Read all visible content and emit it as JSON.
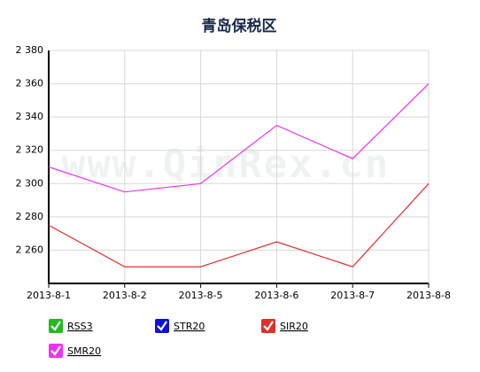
{
  "chart_data": {
    "type": "line",
    "title": "青岛保税区",
    "watermark": "www.QinRex.cn",
    "categories": [
      "2013-8-1",
      "2013-8-2",
      "2013-8-5",
      "2013-8-6",
      "2013-8-7",
      "2013-8-8"
    ],
    "series": [
      {
        "name": "RSS3",
        "color": "#22bb22",
        "values": [
          null,
          null,
          null,
          null,
          null,
          null
        ]
      },
      {
        "name": "STR20",
        "color": "#1111dd",
        "values": [
          null,
          null,
          null,
          null,
          null,
          null
        ]
      },
      {
        "name": "SIR20",
        "color": "#e0302a",
        "values": [
          2275,
          2250,
          2250,
          2265,
          2250,
          2300
        ]
      },
      {
        "name": "SMR20",
        "color": "#ee33ee",
        "values": [
          2310,
          2295,
          2300,
          2335,
          2315,
          2360
        ]
      }
    ],
    "ylim": [
      2240,
      2380
    ],
    "yticks": [
      {
        "value": 2260,
        "label": "2 260"
      },
      {
        "value": 2280,
        "label": "2 280"
      },
      {
        "value": 2300,
        "label": "2 300"
      },
      {
        "value": 2320,
        "label": "2 320"
      },
      {
        "value": 2340,
        "label": "2 340"
      },
      {
        "value": 2360,
        "label": "2 360"
      },
      {
        "value": 2380,
        "label": "2 380"
      }
    ],
    "grid": true
  }
}
